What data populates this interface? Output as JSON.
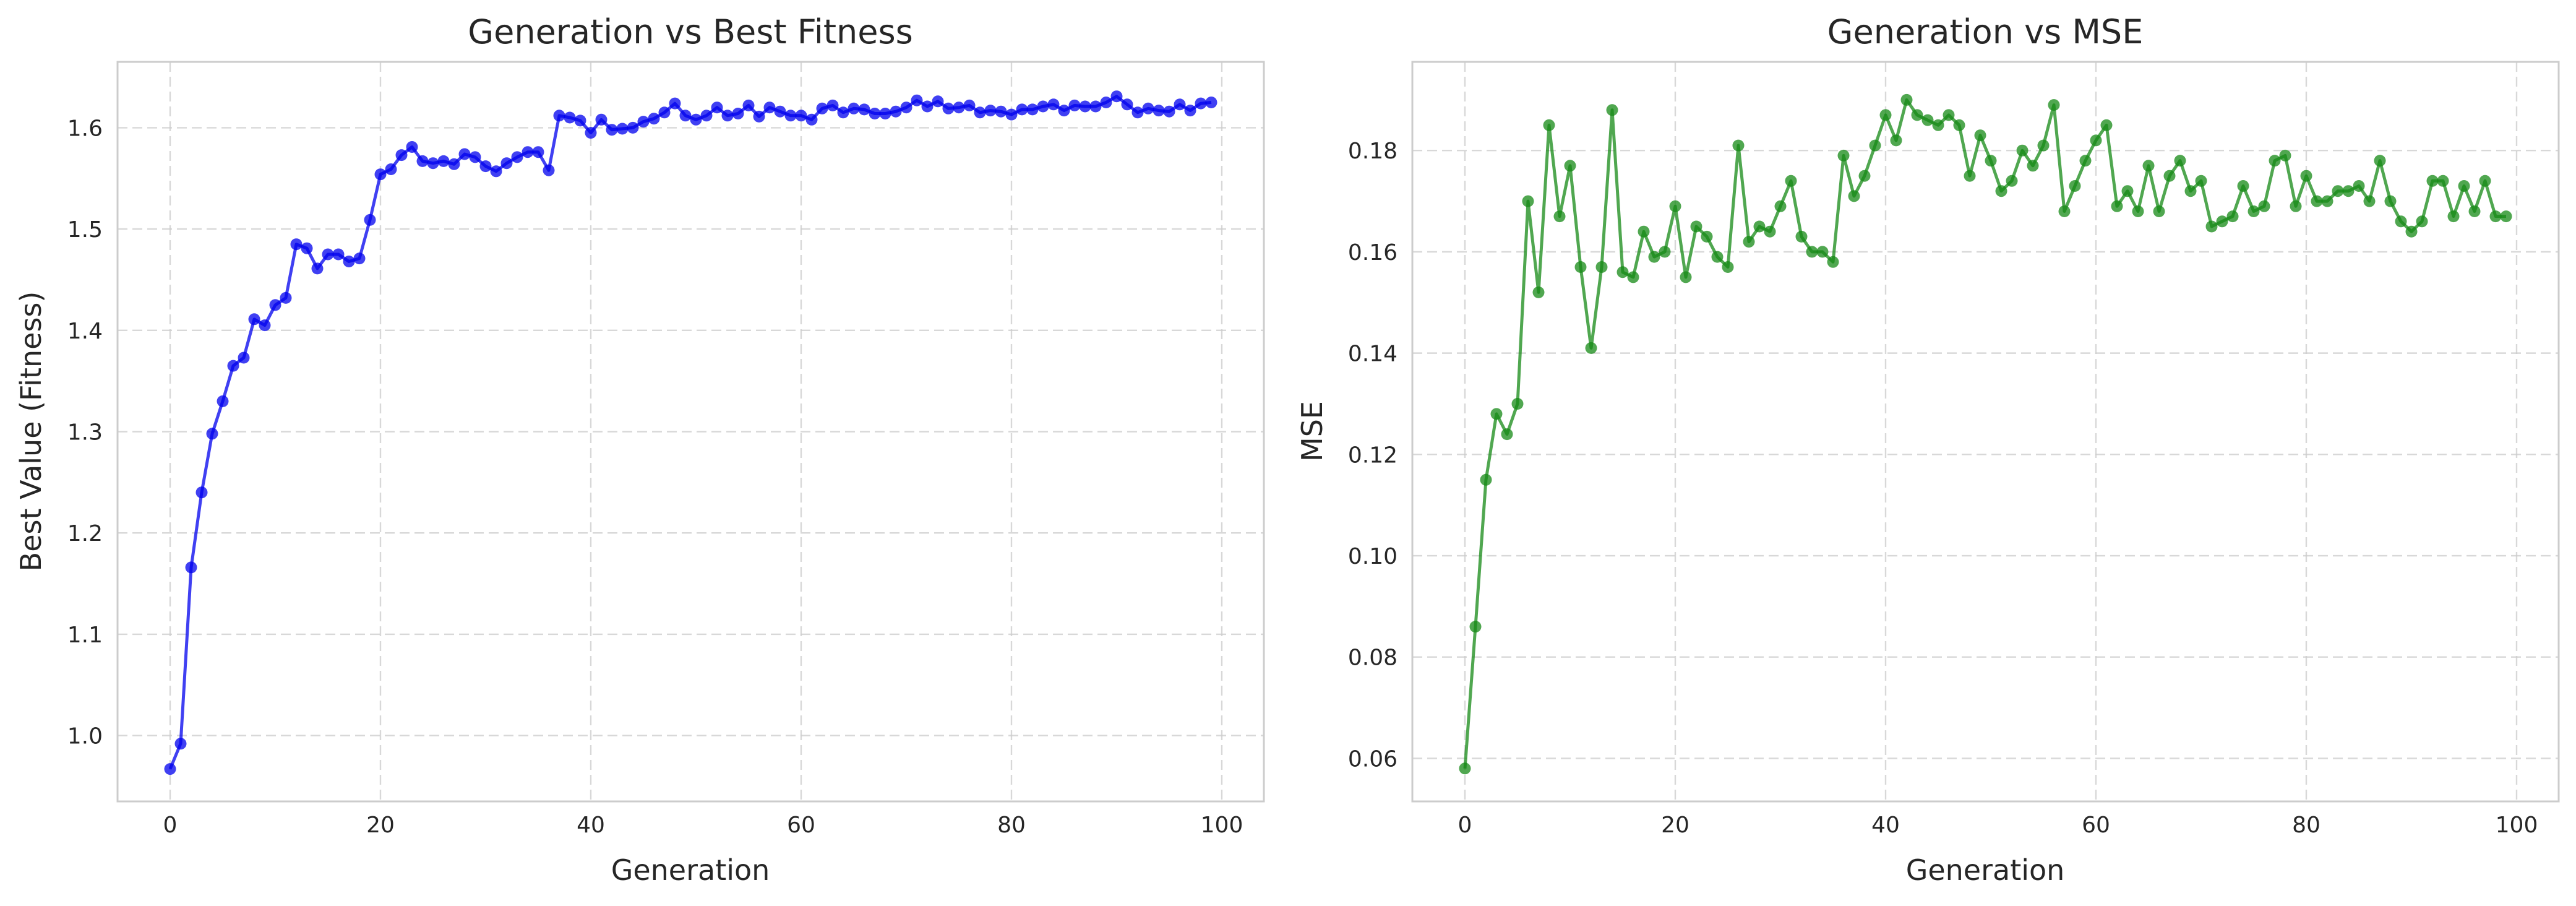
{
  "chart_data": [
    {
      "type": "line",
      "title": "Generation vs Best Fitness",
      "xlabel": "Generation",
      "ylabel": "Best Value (Fitness)",
      "xlim": [
        -5,
        104
      ],
      "ylim": [
        0.935,
        1.665
      ],
      "xticks": [
        0,
        20,
        40,
        60,
        80,
        100
      ],
      "yticks": [
        1.0,
        1.1,
        1.2,
        1.3,
        1.4,
        1.5,
        1.6
      ],
      "ytick_labels": [
        "1.0",
        "1.1",
        "1.2",
        "1.3",
        "1.4",
        "1.5",
        "1.6"
      ],
      "grid": true,
      "color": "#0000ee",
      "x": [
        0,
        1,
        2,
        3,
        4,
        5,
        6,
        7,
        8,
        9,
        10,
        11,
        12,
        13,
        14,
        15,
        16,
        17,
        18,
        19,
        20,
        21,
        22,
        23,
        24,
        25,
        26,
        27,
        28,
        29,
        30,
        31,
        32,
        33,
        34,
        35,
        36,
        37,
        38,
        39,
        40,
        41,
        42,
        43,
        44,
        45,
        46,
        47,
        48,
        49,
        50,
        51,
        52,
        53,
        54,
        55,
        56,
        57,
        58,
        59,
        60,
        61,
        62,
        63,
        64,
        65,
        66,
        67,
        68,
        69,
        70,
        71,
        72,
        73,
        74,
        75,
        76,
        77,
        78,
        79,
        80,
        81,
        82,
        83,
        84,
        85,
        86,
        87,
        88,
        89,
        90,
        91,
        92,
        93,
        94,
        95,
        96,
        97,
        98,
        99
      ],
      "y": [
        0.967,
        0.992,
        1.166,
        1.24,
        1.298,
        1.33,
        1.365,
        1.373,
        1.411,
        1.405,
        1.425,
        1.432,
        1.485,
        1.481,
        1.461,
        1.475,
        1.475,
        1.468,
        1.471,
        1.509,
        1.554,
        1.559,
        1.573,
        1.581,
        1.567,
        1.565,
        1.567,
        1.564,
        1.574,
        1.571,
        1.562,
        1.557,
        1.565,
        1.571,
        1.576,
        1.576,
        1.558,
        1.612,
        1.61,
        1.607,
        1.595,
        1.608,
        1.598,
        1.599,
        1.6,
        1.606,
        1.609,
        1.615,
        1.624,
        1.612,
        1.608,
        1.612,
        1.62,
        1.612,
        1.614,
        1.622,
        1.611,
        1.62,
        1.616,
        1.612,
        1.612,
        1.608,
        1.619,
        1.622,
        1.615,
        1.619,
        1.618,
        1.614,
        1.614,
        1.616,
        1.62,
        1.627,
        1.621,
        1.626,
        1.619,
        1.62,
        1.622,
        1.615,
        1.617,
        1.616,
        1.613,
        1.618,
        1.618,
        1.621,
        1.623,
        1.617,
        1.622,
        1.621,
        1.621,
        1.625,
        1.631,
        1.623,
        1.615,
        1.619,
        1.617,
        1.616,
        1.623,
        1.617,
        1.624,
        1.625
      ]
    },
    {
      "type": "line",
      "title": "Generation vs MSE",
      "xlabel": "Generation",
      "ylabel": "MSE",
      "xlim": [
        -5,
        104
      ],
      "ylim": [
        0.0515,
        0.1975
      ],
      "xticks": [
        0,
        20,
        40,
        60,
        80,
        100
      ],
      "yticks": [
        0.06,
        0.08,
        0.1,
        0.12,
        0.14,
        0.16,
        0.18
      ],
      "ytick_labels": [
        "0.06",
        "0.08",
        "0.10",
        "0.12",
        "0.14",
        "0.16",
        "0.18"
      ],
      "grid": true,
      "color": "#168a16",
      "x": [
        0,
        1,
        2,
        3,
        4,
        5,
        6,
        7,
        8,
        9,
        10,
        11,
        12,
        13,
        14,
        15,
        16,
        17,
        18,
        19,
        20,
        21,
        22,
        23,
        24,
        25,
        26,
        27,
        28,
        29,
        30,
        31,
        32,
        33,
        34,
        35,
        36,
        37,
        38,
        39,
        40,
        41,
        42,
        43,
        44,
        45,
        46,
        47,
        48,
        49,
        50,
        51,
        52,
        53,
        54,
        55,
        56,
        57,
        58,
        59,
        60,
        61,
        62,
        63,
        64,
        65,
        66,
        67,
        68,
        69,
        70,
        71,
        72,
        73,
        74,
        75,
        76,
        77,
        78,
        79,
        80,
        81,
        82,
        83,
        84,
        85,
        86,
        87,
        88,
        89,
        90,
        91,
        92,
        93,
        94,
        95,
        96,
        97,
        98,
        99
      ],
      "y": [
        0.058,
        0.086,
        0.115,
        0.128,
        0.124,
        0.13,
        0.17,
        0.152,
        0.185,
        0.167,
        0.177,
        0.157,
        0.141,
        0.157,
        0.188,
        0.156,
        0.155,
        0.164,
        0.159,
        0.16,
        0.169,
        0.155,
        0.165,
        0.163,
        0.159,
        0.157,
        0.181,
        0.162,
        0.165,
        0.164,
        0.169,
        0.174,
        0.163,
        0.16,
        0.16,
        0.158,
        0.179,
        0.171,
        0.175,
        0.181,
        0.187,
        0.182,
        0.19,
        0.187,
        0.186,
        0.185,
        0.187,
        0.185,
        0.175,
        0.183,
        0.178,
        0.172,
        0.174,
        0.18,
        0.177,
        0.181,
        0.189,
        0.168,
        0.173,
        0.178,
        0.182,
        0.185,
        0.169,
        0.172,
        0.168,
        0.177,
        0.168,
        0.175,
        0.178,
        0.172,
        0.174,
        0.165,
        0.166,
        0.167,
        0.173,
        0.168,
        0.169,
        0.178,
        0.179,
        0.169,
        0.175,
        0.17,
        0.17,
        0.172,
        0.172,
        0.173,
        0.17,
        0.178,
        0.17,
        0.166,
        0.164,
        0.166,
        0.174,
        0.174,
        0.167,
        0.173,
        0.168,
        0.174,
        0.167,
        0.167
      ]
    }
  ]
}
